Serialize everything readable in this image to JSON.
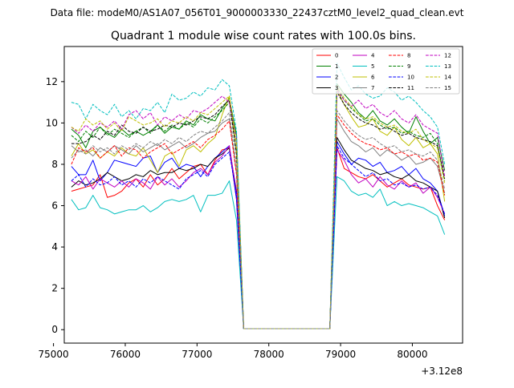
{
  "suptitle": "Data file: modeM0/AS1A07_056T01_9000003330_22437cztM0_level2_quad_clean.evt",
  "chart_data": {
    "type": "line",
    "title": "Quadrant 1 module wise count rates with 100.0s bins.",
    "xlabel": "",
    "ylabel": "",
    "x_offset_label": "+3.12e8",
    "xlim": [
      75150,
      80700
    ],
    "ylim": [
      -0.65,
      13.7
    ],
    "xticks": [
      75000,
      76000,
      77000,
      78000,
      79000,
      80000
    ],
    "xtick_labels": [
      "75000",
      "76000",
      "77000",
      "78000",
      "79000",
      "80000"
    ],
    "yticks": [
      0,
      2,
      4,
      6,
      8,
      10,
      12
    ],
    "ytick_labels": [
      "0",
      "2",
      "4",
      "6",
      "8",
      "10",
      "12"
    ],
    "grid": false,
    "legend_position": "top-right",
    "legend_columns": 4,
    "x": [
      75250,
      75350,
      75450,
      75550,
      75650,
      75750,
      75850,
      75950,
      76050,
      76150,
      76250,
      76350,
      76450,
      76550,
      76650,
      76750,
      76850,
      76950,
      77050,
      77150,
      77250,
      77350,
      77450,
      77550,
      77650,
      77750,
      77850,
      77950,
      78050,
      78150,
      78250,
      78350,
      78450,
      78550,
      78650,
      78750,
      78850,
      78950,
      79050,
      79150,
      79250,
      79350,
      79450,
      79550,
      79650,
      79750,
      79850,
      79950,
      80050,
      80150,
      80250,
      80350,
      80450
    ],
    "series": [
      {
        "name": "0",
        "color": "#ff0000",
        "dash": "solid",
        "values": [
          6.7,
          6.8,
          6.9,
          7.0,
          7.5,
          6.4,
          6.5,
          6.7,
          7.1,
          7.3,
          6.9,
          7.5,
          7.0,
          7.3,
          7.8,
          7.3,
          7.6,
          7.9,
          8.0,
          7.5,
          8.2,
          8.7,
          8.8,
          6.3,
          0.05,
          0.05,
          0.05,
          0.05,
          0.05,
          0.05,
          0.05,
          0.05,
          0.05,
          0.05,
          0.05,
          0.05,
          0.05,
          8.8,
          7.8,
          7.6,
          7.4,
          7.3,
          7.5,
          7.2,
          6.9,
          7.1,
          7.3,
          7.0,
          6.9,
          6.8,
          6.9,
          6.0,
          5.3
        ]
      },
      {
        "name": "1",
        "color": "#008000",
        "dash": "solid",
        "values": [
          9.7,
          9.4,
          8.8,
          9.6,
          9.8,
          9.5,
          9.3,
          9.7,
          9.4,
          9.6,
          9.4,
          9.6,
          9.9,
          9.5,
          9.8,
          9.7,
          10.1,
          9.9,
          10.4,
          10.2,
          10.1,
          10.7,
          11.2,
          9.4,
          0.05,
          0.05,
          0.05,
          0.05,
          0.05,
          0.05,
          0.05,
          0.05,
          0.05,
          0.05,
          0.05,
          0.05,
          0.05,
          11.9,
          11.4,
          11.0,
          10.5,
          10.2,
          10.6,
          10.1,
          9.9,
          10.2,
          9.8,
          9.5,
          10.3,
          9.6,
          9.0,
          9.3,
          7.7
        ]
      },
      {
        "name": "2",
        "color": "#0000ff",
        "dash": "solid",
        "values": [
          7.9,
          7.5,
          7.5,
          8.2,
          7.2,
          7.6,
          8.2,
          8.1,
          8.0,
          7.9,
          8.3,
          8.4,
          7.6,
          8.1,
          8.3,
          7.8,
          8.0,
          7.9,
          7.4,
          7.9,
          8.3,
          8.6,
          8.9,
          6.3,
          0.05,
          0.05,
          0.05,
          0.05,
          0.05,
          0.05,
          0.05,
          0.05,
          0.05,
          0.05,
          0.05,
          0.05,
          0.05,
          9.1,
          8.5,
          8.0,
          8.3,
          8.2,
          7.9,
          8.1,
          7.6,
          7.7,
          7.9,
          7.5,
          7.8,
          7.3,
          7.1,
          6.7,
          5.5
        ]
      },
      {
        "name": "3",
        "color": "#000000",
        "dash": "solid",
        "values": [
          6.9,
          7.2,
          7.0,
          7.1,
          7.3,
          7.6,
          7.4,
          7.2,
          7.3,
          7.5,
          7.4,
          7.7,
          7.5,
          7.6,
          7.6,
          7.8,
          7.7,
          7.8,
          8.0,
          7.9,
          8.3,
          8.5,
          8.8,
          6.7,
          0.05,
          0.05,
          0.05,
          0.05,
          0.05,
          0.05,
          0.05,
          0.05,
          0.05,
          0.05,
          0.05,
          0.05,
          0.05,
          9.3,
          8.7,
          8.2,
          8.0,
          7.8,
          7.7,
          7.5,
          7.6,
          7.4,
          7.3,
          7.5,
          7.2,
          7.1,
          6.9,
          6.7,
          5.4
        ]
      },
      {
        "name": "4",
        "color": "#c000c0",
        "dash": "solid",
        "values": [
          7.2,
          7.0,
          7.4,
          6.8,
          7.3,
          7.1,
          6.9,
          7.2,
          6.9,
          7.3,
          7.1,
          6.8,
          7.4,
          7.0,
          7.3,
          6.9,
          7.2,
          7.6,
          7.8,
          7.5,
          8.1,
          8.4,
          8.9,
          6.6,
          0.05,
          0.05,
          0.05,
          0.05,
          0.05,
          0.05,
          0.05,
          0.05,
          0.05,
          0.05,
          0.05,
          0.05,
          0.05,
          8.7,
          8.2,
          7.5,
          7.1,
          7.3,
          6.9,
          7.4,
          7.0,
          6.8,
          7.2,
          6.9,
          7.1,
          6.6,
          6.9,
          6.4,
          5.6
        ]
      },
      {
        "name": "5",
        "color": "#00bfbf",
        "dash": "solid",
        "values": [
          6.3,
          5.8,
          5.9,
          6.5,
          5.9,
          5.8,
          5.6,
          5.7,
          5.8,
          5.8,
          6.0,
          5.7,
          5.9,
          6.2,
          6.3,
          6.2,
          6.3,
          6.5,
          5.7,
          6.5,
          6.5,
          6.6,
          7.2,
          5.3,
          0.05,
          0.05,
          0.05,
          0.05,
          0.05,
          0.05,
          0.05,
          0.05,
          0.05,
          0.05,
          0.05,
          0.05,
          0.05,
          7.4,
          7.2,
          6.7,
          6.5,
          6.6,
          6.4,
          6.8,
          6.0,
          6.2,
          6.0,
          6.1,
          6.0,
          5.9,
          5.7,
          5.5,
          4.6
        ]
      },
      {
        "name": "6",
        "color": "#bfbf00",
        "dash": "solid",
        "values": [
          8.4,
          9.0,
          8.5,
          8.7,
          8.3,
          8.6,
          8.4,
          8.8,
          8.5,
          8.4,
          8.8,
          8.2,
          7.6,
          8.4,
          8.6,
          7.9,
          8.7,
          8.9,
          8.6,
          9.0,
          9.3,
          10.4,
          11.3,
          8.5,
          0.05,
          0.05,
          0.05,
          0.05,
          0.05,
          0.05,
          0.05,
          0.05,
          0.05,
          0.05,
          0.05,
          0.05,
          0.05,
          11.6,
          10.9,
          10.3,
          9.8,
          9.9,
          10.2,
          9.6,
          9.4,
          9.8,
          9.2,
          8.9,
          9.3,
          8.8,
          9.0,
          8.5,
          6.2
        ]
      },
      {
        "name": "7",
        "color": "#808080",
        "dash": "solid",
        "values": [
          8.9,
          8.6,
          8.7,
          8.4,
          8.8,
          8.6,
          8.9,
          8.7,
          8.5,
          8.9,
          8.6,
          8.8,
          9.0,
          8.7,
          8.9,
          9.1,
          8.8,
          9.0,
          9.3,
          9.5,
          9.6,
          10.0,
          10.2,
          7.6,
          0.05,
          0.05,
          0.05,
          0.05,
          0.05,
          0.05,
          0.05,
          0.05,
          0.05,
          0.05,
          0.05,
          0.05,
          0.05,
          10.2,
          9.6,
          9.1,
          8.9,
          8.6,
          8.8,
          8.4,
          8.7,
          8.5,
          8.2,
          8.4,
          8.0,
          8.1,
          8.3,
          7.9,
          6.6
        ]
      },
      {
        "name": "8",
        "color": "#ff0000",
        "dash": "dashed",
        "values": [
          8.0,
          8.8,
          8.6,
          8.8,
          8.3,
          8.6,
          8.9,
          8.4,
          8.8,
          8.7,
          8.3,
          8.6,
          8.8,
          9.0,
          8.5,
          8.7,
          8.9,
          9.1,
          8.8,
          9.2,
          9.4,
          9.7,
          10.1,
          7.5,
          0.05,
          0.05,
          0.05,
          0.05,
          0.05,
          0.05,
          0.05,
          0.05,
          0.05,
          0.05,
          0.05,
          0.05,
          0.05,
          10.4,
          9.9,
          9.5,
          9.2,
          9.0,
          8.9,
          8.7,
          8.8,
          8.5,
          8.6,
          8.4,
          8.5,
          8.2,
          8.3,
          8.1,
          6.5
        ]
      },
      {
        "name": "9",
        "color": "#008000",
        "dash": "dashed",
        "values": [
          9.4,
          9.1,
          9.6,
          9.3,
          9.8,
          9.4,
          9.7,
          9.5,
          9.3,
          9.6,
          9.8,
          9.5,
          9.9,
          9.6,
          9.9,
          9.7,
          10.0,
          9.8,
          10.2,
          10.0,
          10.3,
          10.6,
          11.0,
          8.6,
          0.05,
          0.05,
          0.05,
          0.05,
          0.05,
          0.05,
          0.05,
          0.05,
          0.05,
          0.05,
          0.05,
          0.05,
          0.05,
          11.7,
          11.1,
          10.7,
          10.4,
          10.1,
          10.2,
          9.9,
          9.7,
          9.8,
          9.5,
          9.6,
          9.4,
          9.3,
          9.5,
          9.0,
          7.2
        ]
      },
      {
        "name": "10",
        "color": "#0000ff",
        "dash": "dashed",
        "values": [
          7.2,
          7.5,
          6.9,
          7.3,
          7.0,
          7.1,
          7.4,
          7.0,
          7.2,
          6.9,
          7.3,
          7.1,
          7.4,
          7.2,
          7.0,
          6.8,
          7.3,
          7.5,
          7.7,
          7.4,
          8.0,
          8.3,
          8.6,
          6.5,
          0.05,
          0.05,
          0.05,
          0.05,
          0.05,
          0.05,
          0.05,
          0.05,
          0.05,
          0.05,
          0.05,
          0.05,
          0.05,
          8.9,
          8.3,
          8.0,
          7.7,
          7.4,
          7.6,
          7.2,
          7.3,
          7.0,
          7.1,
          6.9,
          7.0,
          6.8,
          6.9,
          6.5,
          5.6
        ]
      },
      {
        "name": "11",
        "color": "#000000",
        "dash": "dashed",
        "values": [
          9.0,
          9.0,
          9.1,
          9.4,
          9.2,
          9.6,
          9.4,
          9.9,
          9.6,
          9.5,
          9.8,
          9.6,
          9.7,
          9.9,
          9.8,
          10.0,
          9.9,
          10.1,
          10.3,
          10.2,
          10.4,
          10.8,
          11.1,
          8.5,
          0.05,
          0.05,
          0.05,
          0.05,
          0.05,
          0.05,
          0.05,
          0.05,
          0.05,
          0.05,
          0.05,
          0.05,
          0.05,
          11.5,
          10.9,
          10.5,
          10.2,
          10.0,
          9.9,
          9.7,
          9.8,
          9.6,
          9.4,
          9.5,
          9.3,
          9.2,
          9.1,
          8.9,
          7.3
        ]
      },
      {
        "name": "12",
        "color": "#c000c0",
        "dash": "dashed",
        "values": [
          9.8,
          9.5,
          9.9,
          9.6,
          10.0,
          9.8,
          10.1,
          9.7,
          10.4,
          10.6,
          10.2,
          10.5,
          9.9,
          10.3,
          10.1,
          10.4,
          10.2,
          10.6,
          10.5,
          10.7,
          11.0,
          11.3,
          11.0,
          9.2,
          0.05,
          0.05,
          0.05,
          0.05,
          0.05,
          0.05,
          0.05,
          0.05,
          0.05,
          0.05,
          0.05,
          0.05,
          0.05,
          11.6,
          11.1,
          10.8,
          11.1,
          10.7,
          10.9,
          10.5,
          10.3,
          10.6,
          10.2,
          10.0,
          10.4,
          9.9,
          9.7,
          9.5,
          7.4
        ]
      },
      {
        "name": "13",
        "color": "#00bfbf",
        "dash": "dashed",
        "values": [
          11.0,
          10.9,
          10.2,
          10.9,
          10.6,
          10.4,
          10.9,
          10.3,
          10.6,
          10.2,
          10.7,
          10.6,
          11.0,
          10.5,
          11.4,
          11.1,
          11.2,
          11.5,
          11.3,
          11.7,
          11.6,
          12.1,
          11.8,
          9.6,
          0.05,
          0.05,
          0.05,
          0.05,
          0.05,
          0.05,
          0.05,
          0.05,
          0.05,
          0.05,
          0.05,
          0.05,
          0.05,
          12.9,
          12.2,
          11.6,
          11.8,
          11.4,
          11.2,
          11.3,
          11.7,
          11.5,
          11.1,
          11.3,
          11.0,
          10.6,
          10.3,
          9.8,
          8.0
        ]
      },
      {
        "name": "14",
        "color": "#bfbf00",
        "dash": "dashed",
        "values": [
          9.8,
          9.6,
          10.2,
          9.9,
          10.1,
          9.7,
          10.0,
          9.6,
          10.3,
          10.1,
          9.9,
          10.0,
          10.2,
          9.8,
          10.1,
          10.0,
          10.3,
          10.1,
          10.5,
          10.4,
          10.7,
          11.0,
          11.3,
          9.0,
          0.05,
          0.05,
          0.05,
          0.05,
          0.05,
          0.05,
          0.05,
          0.05,
          0.05,
          0.05,
          0.05,
          0.05,
          0.05,
          11.8,
          11.2,
          10.8,
          10.4,
          10.2,
          10.3,
          10.0,
          9.8,
          9.9,
          9.6,
          9.5,
          9.7,
          9.2,
          9.0,
          8.8,
          7.1
        ]
      },
      {
        "name": "15",
        "color": "#808080",
        "dash": "dashed",
        "values": [
          8.3,
          8.7,
          8.5,
          8.9,
          8.6,
          8.8,
          8.5,
          8.9,
          8.7,
          9.0,
          8.8,
          9.1,
          8.9,
          9.2,
          9.0,
          9.3,
          9.1,
          9.4,
          9.6,
          9.5,
          9.8,
          10.1,
          10.5,
          8.0,
          0.05,
          0.05,
          0.05,
          0.05,
          0.05,
          0.05,
          0.05,
          0.05,
          0.05,
          0.05,
          0.05,
          0.05,
          0.05,
          10.6,
          10.1,
          9.7,
          9.4,
          9.2,
          9.3,
          9.0,
          8.8,
          8.9,
          8.6,
          8.7,
          8.5,
          8.4,
          8.6,
          8.2,
          6.8
        ]
      }
    ]
  }
}
